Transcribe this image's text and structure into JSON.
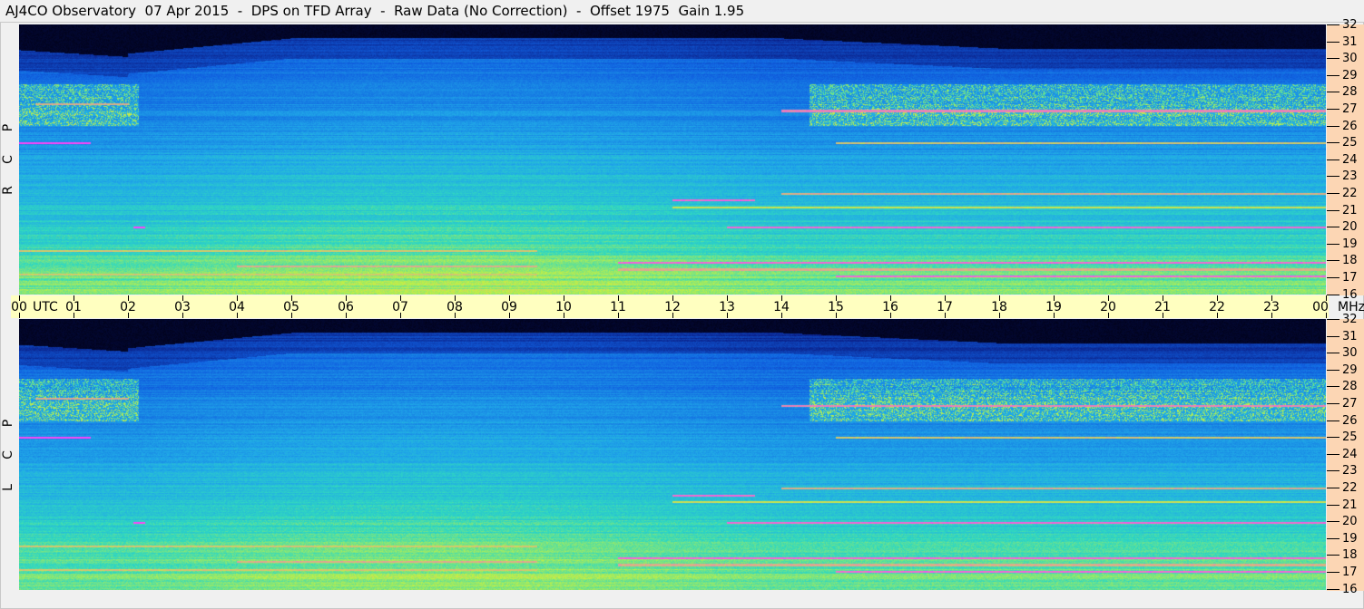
{
  "title": "AJ4CO Observatory  07 Apr 2015  -  DPS on TFD Array  -  Raw Data (No Correction)  -  Offset 1975  Gain 1.95",
  "chart_data": {
    "type": "heatmap",
    "title": "AJ4CO Observatory  07 Apr 2015  -  DPS on TFD Array  -  Raw Data (No Correction)  -  Offset 1975  Gain 1.95",
    "xlabel": "UTC",
    "ylabel": "MHz",
    "x_ticks": [
      "00",
      "01",
      "02",
      "03",
      "04",
      "05",
      "06",
      "07",
      "08",
      "09",
      "10",
      "11",
      "12",
      "13",
      "14",
      "15",
      "16",
      "17",
      "18",
      "19",
      "20",
      "21",
      "22",
      "23",
      "00"
    ],
    "xlim": [
      0,
      24
    ],
    "y_ticks": [
      32,
      31,
      30,
      29,
      28,
      27,
      26,
      25,
      24,
      23,
      22,
      21,
      20,
      19,
      18,
      17,
      16
    ],
    "ylim": [
      16,
      32
    ],
    "panels": [
      {
        "label": "R C P",
        "letters": [
          "R",
          "C",
          "P"
        ]
      },
      {
        "label": "L C P",
        "letters": [
          "L",
          "C",
          "P"
        ]
      }
    ],
    "colormap": [
      "#000010",
      "#0a1a80",
      "#1060e0",
      "#20a8e8",
      "#30d8c0",
      "#c8f040",
      "#ff40ff"
    ]
  }
}
